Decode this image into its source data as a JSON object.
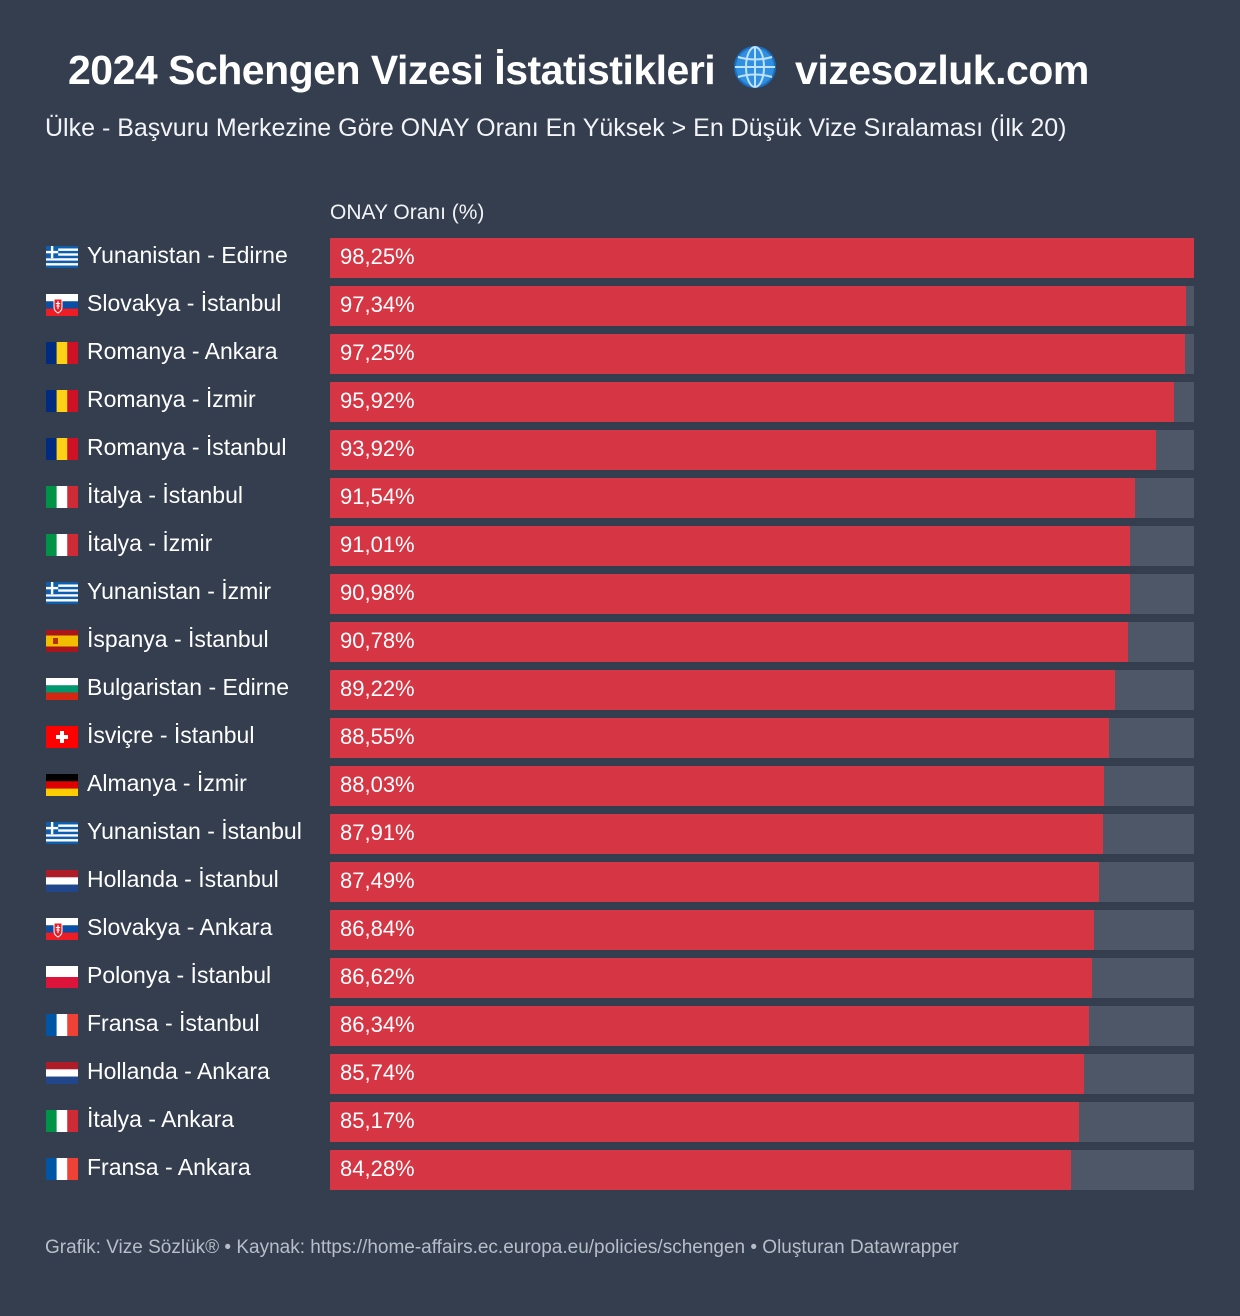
{
  "header": {
    "title_prefix": "2024 Schengen Vizesi İstatistikleri",
    "title_suffix": "vizesozluk.com",
    "subtitle": "Ülke - Başvuru Merkezine Göre ONAY Oranı En Yüksek > En Düşük Vize Sıralaması (İlk 20)",
    "globe_icon": "globe-icon"
  },
  "footer": {
    "text": "Grafik: Vize Sözlük® • Kaynak: https://home-affairs.ec.europa.eu/policies/schengen • Oluşturan Datawrapper"
  },
  "colors": {
    "background": "#343e4e",
    "bar": "#d63544",
    "track": "#4d5767"
  },
  "chart_data": {
    "type": "bar",
    "orientation": "horizontal",
    "column_header": "ONAY Oranı (%)",
    "xlim": [
      0,
      100
    ],
    "grid": false,
    "categories": [
      "Yunanistan - Edirne",
      "Slovakya - İstanbul",
      "Romanya - Ankara",
      "Romanya - İzmir",
      "Romanya - İstanbul",
      "İtalya - İstanbul",
      "İtalya - İzmir",
      "Yunanistan - İzmir",
      "İspanya - İstanbul",
      "Bulgaristan - Edirne",
      "İsviçre - İstanbul",
      "Almanya - İzmir",
      "Yunanistan - İstanbul",
      "Hollanda - İstanbul",
      "Slovakya - Ankara",
      "Polonya - İstanbul",
      "Fransa - İstanbul",
      "Hollanda - Ankara",
      "İtalya - Ankara",
      "Fransa - Ankara"
    ],
    "values": [
      98.25,
      97.34,
      97.25,
      95.92,
      93.92,
      91.54,
      91.01,
      90.98,
      90.78,
      89.22,
      88.55,
      88.03,
      87.91,
      87.49,
      86.84,
      86.62,
      86.34,
      85.74,
      85.17,
      84.28
    ],
    "value_labels": [
      "98,25%",
      "97,34%",
      "97,25%",
      "95,92%",
      "93,92%",
      "91,54%",
      "91,01%",
      "90,98%",
      "90,78%",
      "89,22%",
      "88,55%",
      "88,03%",
      "87,91%",
      "87,49%",
      "86,84%",
      "86,62%",
      "86,34%",
      "85,74%",
      "85,17%",
      "84,28%"
    ],
    "flags": [
      "greece-flag-icon",
      "slovakia-flag-icon",
      "romania-flag-icon",
      "romania-flag-icon",
      "romania-flag-icon",
      "italy-flag-icon",
      "italy-flag-icon",
      "greece-flag-icon",
      "spain-flag-icon",
      "bulgaria-flag-icon",
      "switzerland-flag-icon",
      "germany-flag-icon",
      "greece-flag-icon",
      "netherlands-flag-icon",
      "slovakia-flag-icon",
      "poland-flag-icon",
      "france-flag-icon",
      "netherlands-flag-icon",
      "italy-flag-icon",
      "france-flag-icon"
    ]
  }
}
